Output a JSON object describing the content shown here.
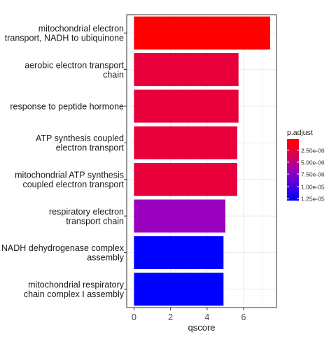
{
  "chart_data": {
    "type": "bar",
    "orientation": "horizontal",
    "categories": [
      "mitochondrial electron\ntransport, NADH to ubiquinone",
      "aerobic electron transport\nchain",
      "response to peptide hormone",
      "ATP synthesis coupled\nelectron transport",
      "mitochondrial ATP synthesis\ncoupled electron transport",
      "respiratory electron\ntransport chain",
      "NADH dehydrogenase complex\nassembly",
      "mitochondrial respiratory\nchain complex I assembly"
    ],
    "values": [
      7.45,
      5.72,
      5.72,
      5.65,
      5.65,
      5.0,
      4.9,
      4.9
    ],
    "p_adjust": [
      1.2e-06,
      2.9e-06,
      2.9e-06,
      3.1e-06,
      3.1e-06,
      8.5e-06,
      1.25e-05,
      1.25e-05
    ],
    "bar_colors": [
      "#ff0000",
      "#e8003a",
      "#e8003a",
      "#e8003a",
      "#e8003a",
      "#9900c0",
      "#0000ff",
      "#0000ff"
    ],
    "xlabel": "qscore",
    "xlim": [
      -0.4,
      7.8
    ],
    "xticks": [
      0,
      2,
      4,
      6
    ],
    "grid": true,
    "legend": {
      "title": "p.adjust",
      "position": "right",
      "labels": [
        "2.50e-06",
        "5.00e-06",
        "7.50e-06",
        "1.00e-05",
        "1.25e-05"
      ],
      "gradient": [
        "#ff0000",
        "#e0004a",
        "#9a00b4",
        "#4d00e0",
        "#0000ff"
      ]
    }
  }
}
